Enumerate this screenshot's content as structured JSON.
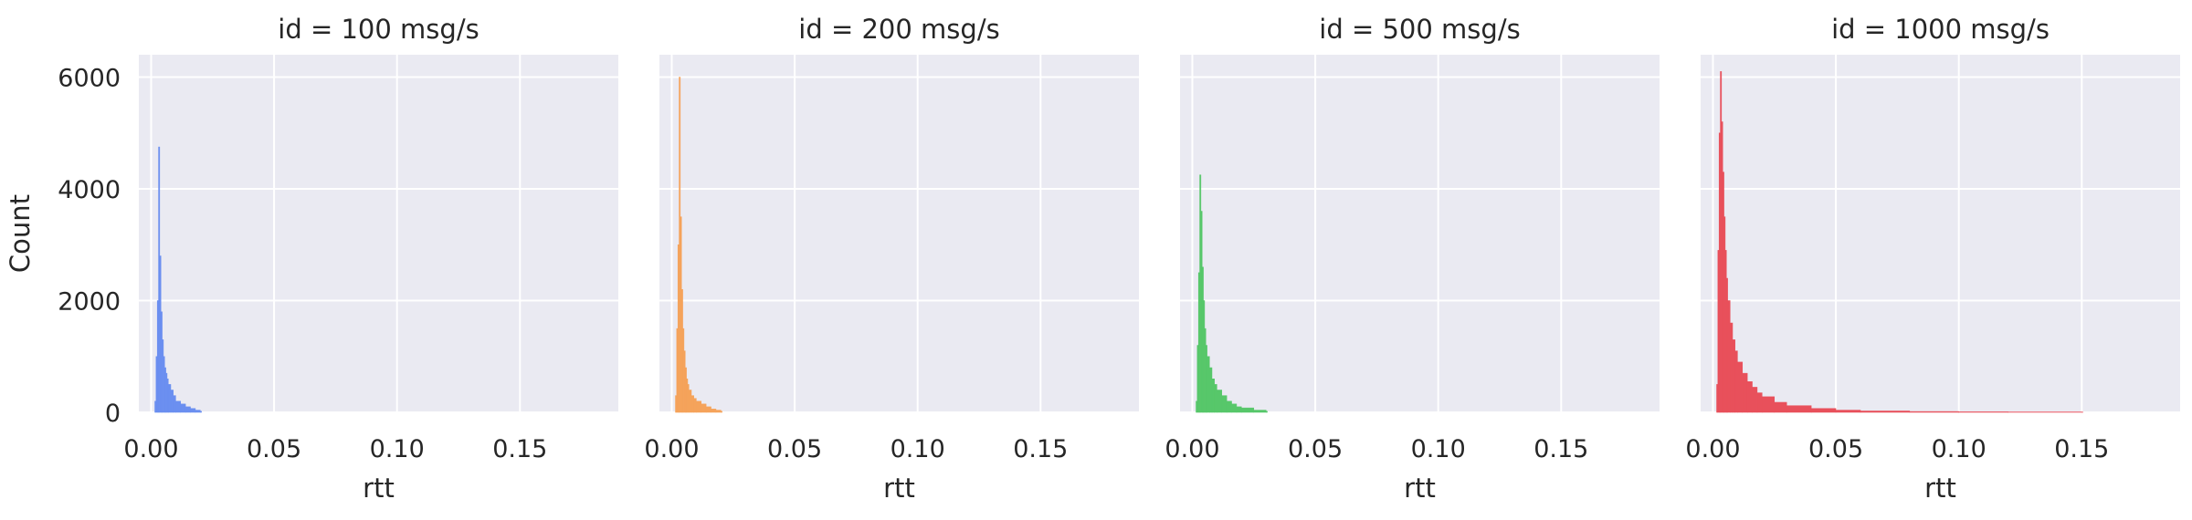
{
  "chart_data": {
    "type": "histogram",
    "shared_y_label": "Count",
    "y_ticks": [
      0,
      2000,
      4000,
      6000
    ],
    "x_ticks": [
      0.0,
      0.05,
      0.1,
      0.15
    ],
    "x_tick_labels": [
      "0.00",
      "0.05",
      "0.10",
      "0.15"
    ],
    "xlim": [
      -0.005,
      0.19
    ],
    "ylim": [
      0,
      6400
    ],
    "grid": true,
    "background_color": "#eaeaf2",
    "panels": [
      {
        "title": "id = 100 msg/s",
        "xlabel": "rtt",
        "color": "#6b8ff0",
        "bins_x": [
          0.0015,
          0.002,
          0.0025,
          0.003,
          0.0035,
          0.004,
          0.0045,
          0.005,
          0.0055,
          0.006,
          0.0065,
          0.007,
          0.008,
          0.009,
          0.01,
          0.012,
          0.014,
          0.016,
          0.018,
          0.02
        ],
        "counts": [
          200,
          1000,
          2000,
          4750,
          2800,
          1800,
          1300,
          1000,
          800,
          700,
          600,
          500,
          400,
          300,
          200,
          150,
          100,
          70,
          40,
          20
        ]
      },
      {
        "title": "id = 200 msg/s",
        "xlabel": "rtt",
        "color": "#f5a35b",
        "bins_x": [
          0.0015,
          0.002,
          0.0025,
          0.003,
          0.0035,
          0.004,
          0.0045,
          0.005,
          0.0055,
          0.006,
          0.0065,
          0.007,
          0.008,
          0.009,
          0.01,
          0.012,
          0.014,
          0.016,
          0.018,
          0.02
        ],
        "counts": [
          300,
          1500,
          3000,
          6000,
          3500,
          2200,
          1500,
          1100,
          800,
          600,
          500,
          400,
          300,
          250,
          200,
          150,
          100,
          60,
          40,
          20
        ]
      },
      {
        "title": "id = 500 msg/s",
        "xlabel": "rtt",
        "color": "#57c76a",
        "bins_x": [
          0.0015,
          0.002,
          0.0025,
          0.003,
          0.0035,
          0.004,
          0.0045,
          0.005,
          0.0055,
          0.006,
          0.007,
          0.008,
          0.009,
          0.01,
          0.012,
          0.014,
          0.016,
          0.018,
          0.02,
          0.025,
          0.03
        ],
        "counts": [
          200,
          1200,
          2500,
          4250,
          3600,
          2600,
          2000,
          1500,
          1200,
          1000,
          800,
          600,
          500,
          400,
          300,
          200,
          150,
          100,
          80,
          40,
          20
        ]
      },
      {
        "title": "id = 1000 msg/s",
        "xlabel": "rtt",
        "color": "#e8505b",
        "bins_x": [
          0.0015,
          0.002,
          0.0025,
          0.003,
          0.0035,
          0.004,
          0.0045,
          0.005,
          0.0055,
          0.006,
          0.007,
          0.008,
          0.009,
          0.01,
          0.012,
          0.014,
          0.016,
          0.018,
          0.02,
          0.025,
          0.03,
          0.04,
          0.05,
          0.06,
          0.08,
          0.1,
          0.12,
          0.15
        ],
        "counts": [
          500,
          2900,
          5000,
          6100,
          5200,
          4300,
          3500,
          2900,
          2400,
          2000,
          1600,
          1300,
          1100,
          900,
          700,
          550,
          450,
          350,
          280,
          180,
          120,
          70,
          40,
          25,
          15,
          10,
          8,
          5
        ]
      }
    ]
  }
}
